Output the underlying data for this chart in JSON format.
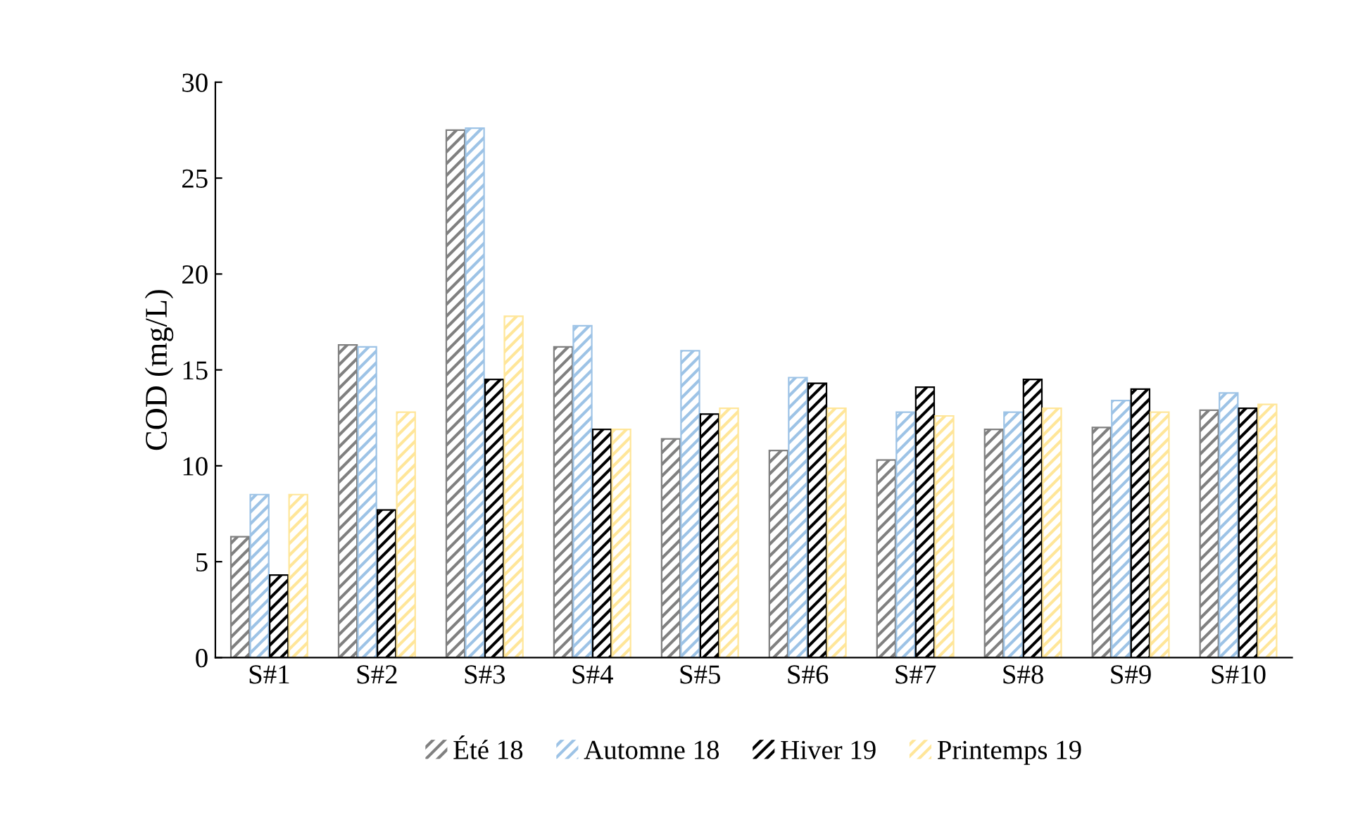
{
  "chart_data": {
    "type": "bar",
    "ylabel": "COD (mg/L)",
    "categories": [
      "S#1",
      "S#2",
      "S#3",
      "S#4",
      "S#5",
      "S#6",
      "S#7",
      "S#8",
      "S#9",
      "S#10"
    ],
    "series": [
      {
        "name": "Été 18",
        "color": "#808080",
        "values": [
          6.3,
          16.3,
          27.5,
          16.2,
          11.4,
          10.8,
          10.3,
          11.9,
          12.0,
          12.9
        ]
      },
      {
        "name": "Automne 18",
        "color": "#9dc3e6",
        "values": [
          8.5,
          16.2,
          27.6,
          17.3,
          16.0,
          14.6,
          12.8,
          12.8,
          13.4,
          13.8
        ]
      },
      {
        "name": "Hiver 19",
        "color": "#000000",
        "values": [
          4.3,
          7.7,
          14.5,
          11.9,
          12.7,
          14.3,
          14.1,
          14.5,
          14.0,
          13.0
        ]
      },
      {
        "name": "Printemps 19",
        "color": "#ffe699",
        "values": [
          8.5,
          12.8,
          17.8,
          11.9,
          13.0,
          13.0,
          12.6,
          13.0,
          12.8,
          13.2
        ]
      }
    ],
    "ylim": [
      0,
      30
    ],
    "yticks": [
      0,
      5,
      10,
      15,
      20,
      25,
      30
    ],
    "grid": false,
    "legend": "bottom"
  }
}
